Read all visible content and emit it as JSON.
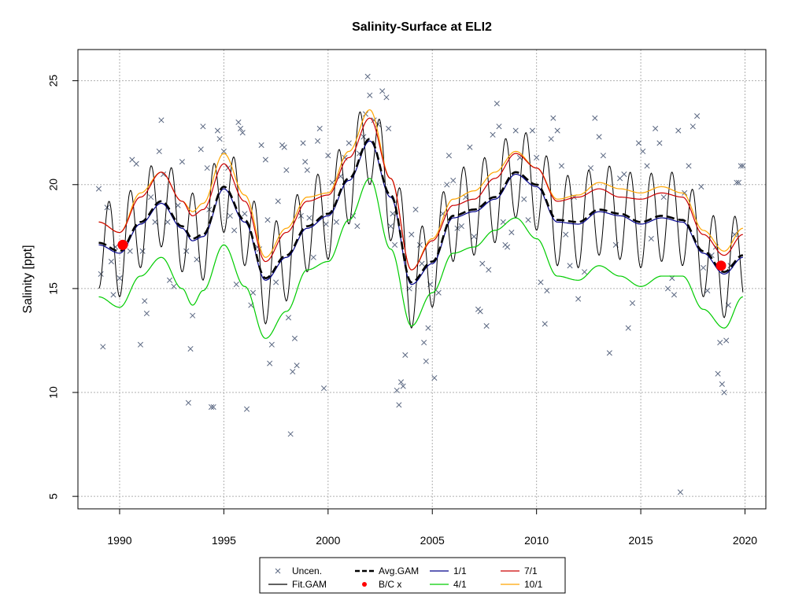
{
  "chart_data": {
    "type": "scatter",
    "title": "Salinity-Surface at ELI2",
    "xlabel": "",
    "ylabel": "Salinity [ppt]",
    "xlim": [
      1988.0,
      2021.0
    ],
    "ylim": [
      4.4,
      26.5
    ],
    "x_ticks": [
      1990,
      1995,
      2000,
      2005,
      2010,
      2015,
      2020
    ],
    "y_ticks": [
      5,
      10,
      15,
      20,
      25
    ],
    "grid": true,
    "legend_placement": "bottom",
    "legend": [
      {
        "label": "Uncen.",
        "kind": "point-x",
        "color": "#5a6781"
      },
      {
        "label": "Fit.GAM",
        "kind": "line",
        "color": "#000000"
      },
      {
        "label": "Avg.GAM",
        "kind": "dashed",
        "color": "#000000"
      },
      {
        "label": "B/C x",
        "kind": "point-dot",
        "color": "#ff0000"
      },
      {
        "label": "1/1",
        "kind": "line",
        "color": "#00008b"
      },
      {
        "label": "4/1",
        "kind": "line",
        "color": "#00cc00"
      },
      {
        "label": "7/1",
        "kind": "line",
        "color": "#cc0000"
      },
      {
        "label": "10/1",
        "kind": "line",
        "color": "#ffa500"
      }
    ],
    "colors": {
      "points": "#5a6781",
      "fit": "#000000",
      "avg": "#000000",
      "bc": "#ff0000",
      "d1_1": "#00008b",
      "d4_1": "#00cc00",
      "d7_1": "#cc0000",
      "d10_1": "#ffa500",
      "grid": "#b0b0b0"
    },
    "seasonal_amplitude": 2.2,
    "baseline": {
      "x": [
        1989.0,
        1990.0,
        1991.0,
        1992.0,
        1993.0,
        1993.5,
        1994.0,
        1995.0,
        1996.0,
        1997.0,
        1998.0,
        1999.0,
        2000.0,
        2001.0,
        2002.0,
        2003.0,
        2004.0,
        2005.0,
        2006.0,
        2007.0,
        2008.0,
        2009.0,
        2010.0,
        2011.0,
        2012.0,
        2013.0,
        2014.0,
        2015.0,
        2016.0,
        2017.0,
        2018.0,
        2019.0,
        2019.9
      ],
      "avg": [
        17.2,
        16.8,
        18.2,
        19.2,
        18.0,
        17.4,
        17.6,
        19.9,
        18.3,
        15.5,
        16.6,
        18.0,
        18.6,
        20.3,
        22.2,
        19.5,
        15.3,
        16.3,
        18.5,
        18.8,
        19.4,
        20.6,
        20.0,
        18.3,
        18.2,
        18.8,
        18.6,
        18.2,
        18.5,
        18.3,
        16.8,
        15.8,
        16.6
      ],
      "d4_1": [
        14.6,
        14.1,
        15.6,
        16.5,
        15.0,
        14.2,
        14.9,
        17.1,
        15.1,
        12.6,
        13.9,
        15.9,
        16.3,
        18.3,
        20.3,
        16.9,
        13.2,
        14.8,
        16.7,
        17.0,
        17.8,
        18.4,
        17.4,
        15.6,
        15.4,
        16.1,
        15.6,
        15.1,
        15.6,
        15.6,
        14.0,
        13.1,
        14.6
      ],
      "d7_1": [
        18.2,
        17.7,
        19.4,
        20.6,
        19.2,
        18.5,
        18.8,
        21.0,
        19.2,
        16.3,
        17.7,
        19.2,
        19.5,
        21.3,
        23.2,
        20.3,
        15.9,
        17.3,
        19.0,
        19.3,
        20.3,
        21.5,
        20.8,
        19.2,
        19.4,
        19.8,
        19.4,
        19.3,
        19.6,
        19.4,
        17.6,
        16.6,
        17.6
      ],
      "d10_1": [
        18.2,
        17.7,
        19.6,
        20.6,
        19.2,
        18.7,
        19.1,
        21.5,
        19.5,
        16.5,
        17.9,
        19.4,
        19.6,
        21.6,
        23.6,
        20.3,
        15.9,
        17.4,
        19.3,
        19.7,
        20.6,
        21.6,
        20.8,
        19.3,
        19.5,
        20.1,
        19.8,
        19.6,
        19.9,
        19.6,
        17.8,
        16.8,
        17.9
      ]
    },
    "bc_points": [
      {
        "x": 1990.15,
        "y": 17.1
      },
      {
        "x": 2018.85,
        "y": 16.1
      }
    ],
    "points": [
      [
        1989.0,
        19.8
      ],
      [
        1989.1,
        15.7
      ],
      [
        1989.2,
        12.2
      ],
      [
        1989.4,
        18.9
      ],
      [
        1989.6,
        16.3
      ],
      [
        1989.7,
        14.7
      ],
      [
        1989.8,
        17.0
      ],
      [
        1990.0,
        15.5
      ],
      [
        1990.3,
        17.2
      ],
      [
        1990.5,
        16.8
      ],
      [
        1990.6,
        21.2
      ],
      [
        1990.8,
        21.0
      ],
      [
        1991.0,
        12.3
      ],
      [
        1991.1,
        16.8
      ],
      [
        1991.2,
        14.4
      ],
      [
        1991.3,
        13.8
      ],
      [
        1991.5,
        19.4
      ],
      [
        1991.7,
        18.2
      ],
      [
        1991.9,
        21.6
      ],
      [
        1992.0,
        23.1
      ],
      [
        1992.1,
        20.5
      ],
      [
        1992.3,
        18.2
      ],
      [
        1992.4,
        15.4
      ],
      [
        1992.6,
        15.1
      ],
      [
        1992.8,
        19.0
      ],
      [
        1993.0,
        21.1
      ],
      [
        1993.2,
        16.8
      ],
      [
        1993.3,
        9.5
      ],
      [
        1993.4,
        12.1
      ],
      [
        1993.5,
        13.7
      ],
      [
        1993.7,
        16.4
      ],
      [
        1993.9,
        21.7
      ],
      [
        1994.0,
        22.8
      ],
      [
        1994.2,
        20.8
      ],
      [
        1994.3,
        18.8
      ],
      [
        1994.4,
        9.3
      ],
      [
        1994.5,
        9.3
      ],
      [
        1994.7,
        22.6
      ],
      [
        1994.8,
        22.2
      ],
      [
        1995.0,
        21.6
      ],
      [
        1995.2,
        20.8
      ],
      [
        1995.3,
        18.5
      ],
      [
        1995.5,
        17.8
      ],
      [
        1995.6,
        15.2
      ],
      [
        1995.7,
        23.0
      ],
      [
        1995.8,
        22.7
      ],
      [
        1995.9,
        22.5
      ],
      [
        1996.0,
        18.6
      ],
      [
        1996.1,
        9.2
      ],
      [
        1996.3,
        14.2
      ],
      [
        1996.4,
        14.8
      ],
      [
        1996.6,
        17.0
      ],
      [
        1996.7,
        16.9
      ],
      [
        1996.8,
        21.9
      ],
      [
        1997.0,
        21.2
      ],
      [
        1997.1,
        18.3
      ],
      [
        1997.2,
        11.4
      ],
      [
        1997.3,
        12.3
      ],
      [
        1997.5,
        15.3
      ],
      [
        1997.6,
        19.2
      ],
      [
        1997.8,
        21.9
      ],
      [
        1997.9,
        21.8
      ],
      [
        1998.0,
        20.7
      ],
      [
        1998.1,
        13.6
      ],
      [
        1998.2,
        8.0
      ],
      [
        1998.3,
        11.0
      ],
      [
        1998.4,
        12.6
      ],
      [
        1998.5,
        11.3
      ],
      [
        1998.7,
        18.5
      ],
      [
        1998.8,
        22.0
      ],
      [
        1998.9,
        21.1
      ],
      [
        1999.0,
        20.7
      ],
      [
        1999.1,
        18.4
      ],
      [
        1999.3,
        16.5
      ],
      [
        1999.5,
        22.1
      ],
      [
        1999.6,
        22.7
      ],
      [
        1999.8,
        10.2
      ],
      [
        1999.9,
        18.1
      ],
      [
        2000.0,
        21.4
      ],
      [
        2000.2,
        20.1
      ],
      [
        2000.4,
        18.2
      ],
      [
        2000.6,
        20.4
      ],
      [
        2000.8,
        21.3
      ],
      [
        2001.0,
        22.0
      ],
      [
        2001.2,
        18.5
      ],
      [
        2001.4,
        18.0
      ],
      [
        2001.5,
        21.5
      ],
      [
        2001.7,
        22.3
      ],
      [
        2001.8,
        23.4
      ],
      [
        2001.9,
        25.2
      ],
      [
        2002.0,
        24.3
      ],
      [
        2002.2,
        23.1
      ],
      [
        2002.4,
        22.9
      ],
      [
        2002.6,
        24.5
      ],
      [
        2002.8,
        24.2
      ],
      [
        2002.9,
        22.7
      ],
      [
        2003.0,
        18.0
      ],
      [
        2003.1,
        18.6
      ],
      [
        2003.2,
        17.1
      ],
      [
        2003.3,
        10.1
      ],
      [
        2003.4,
        9.4
      ],
      [
        2003.5,
        10.5
      ],
      [
        2003.6,
        10.3
      ],
      [
        2003.7,
        11.8
      ],
      [
        2003.9,
        15.0
      ],
      [
        2004.0,
        17.6
      ],
      [
        2004.2,
        18.8
      ],
      [
        2004.4,
        17.1
      ],
      [
        2004.5,
        16.2
      ],
      [
        2004.6,
        12.4
      ],
      [
        2004.7,
        11.5
      ],
      [
        2004.8,
        13.1
      ],
      [
        2004.9,
        15.2
      ],
      [
        2005.1,
        10.7
      ],
      [
        2005.3,
        14.8
      ],
      [
        2005.5,
        18.6
      ],
      [
        2005.7,
        20.0
      ],
      [
        2005.8,
        21.4
      ],
      [
        2006.0,
        20.2
      ],
      [
        2006.2,
        17.9
      ],
      [
        2006.4,
        18.0
      ],
      [
        2006.6,
        19.4
      ],
      [
        2006.8,
        21.8
      ],
      [
        2007.0,
        17.5
      ],
      [
        2007.2,
        14.0
      ],
      [
        2007.3,
        13.9
      ],
      [
        2007.4,
        16.2
      ],
      [
        2007.6,
        13.2
      ],
      [
        2007.7,
        15.9
      ],
      [
        2007.9,
        22.4
      ],
      [
        2008.1,
        23.9
      ],
      [
        2008.2,
        22.8
      ],
      [
        2008.4,
        18.2
      ],
      [
        2008.5,
        17.1
      ],
      [
        2008.6,
        17.0
      ],
      [
        2008.8,
        17.7
      ],
      [
        2009.0,
        22.6
      ],
      [
        2009.2,
        21.3
      ],
      [
        2009.4,
        19.3
      ],
      [
        2009.6,
        18.3
      ],
      [
        2009.8,
        22.6
      ],
      [
        2010.0,
        21.3
      ],
      [
        2010.2,
        15.3
      ],
      [
        2010.4,
        13.3
      ],
      [
        2010.5,
        14.9
      ],
      [
        2010.7,
        22.2
      ],
      [
        2010.8,
        23.2
      ],
      [
        2011.0,
        22.6
      ],
      [
        2011.2,
        20.9
      ],
      [
        2011.4,
        17.6
      ],
      [
        2011.6,
        16.1
      ],
      [
        2011.8,
        19.4
      ],
      [
        2012.0,
        14.5
      ],
      [
        2012.3,
        15.8
      ],
      [
        2012.6,
        20.8
      ],
      [
        2012.8,
        23.2
      ],
      [
        2013.0,
        22.3
      ],
      [
        2013.2,
        21.4
      ],
      [
        2013.5,
        11.9
      ],
      [
        2013.8,
        17.1
      ],
      [
        2014.0,
        20.3
      ],
      [
        2014.2,
        20.5
      ],
      [
        2014.4,
        13.1
      ],
      [
        2014.6,
        14.3
      ],
      [
        2014.9,
        22.0
      ],
      [
        2015.1,
        21.6
      ],
      [
        2015.3,
        20.9
      ],
      [
        2015.5,
        17.4
      ],
      [
        2015.7,
        22.7
      ],
      [
        2015.9,
        22.0
      ],
      [
        2016.1,
        19.4
      ],
      [
        2016.3,
        15.0
      ],
      [
        2016.5,
        15.5
      ],
      [
        2016.6,
        14.7
      ],
      [
        2016.8,
        22.6
      ],
      [
        2016.9,
        5.2
      ],
      [
        2017.1,
        19.6
      ],
      [
        2017.3,
        20.9
      ],
      [
        2017.5,
        22.8
      ],
      [
        2017.7,
        23.3
      ],
      [
        2017.9,
        19.9
      ],
      [
        2018.0,
        16.0
      ],
      [
        2018.2,
        14.9
      ],
      [
        2018.4,
        16.6
      ],
      [
        2018.6,
        17.0
      ],
      [
        2018.7,
        10.9
      ],
      [
        2018.8,
        12.4
      ],
      [
        2018.9,
        10.4
      ],
      [
        2019.0,
        10.0
      ],
      [
        2019.1,
        12.5
      ],
      [
        2019.2,
        14.2
      ],
      [
        2019.3,
        16.1
      ],
      [
        2019.5,
        17.6
      ],
      [
        2019.6,
        20.1
      ],
      [
        2019.7,
        20.1
      ],
      [
        2019.8,
        20.9
      ],
      [
        2019.9,
        20.9
      ]
    ]
  }
}
